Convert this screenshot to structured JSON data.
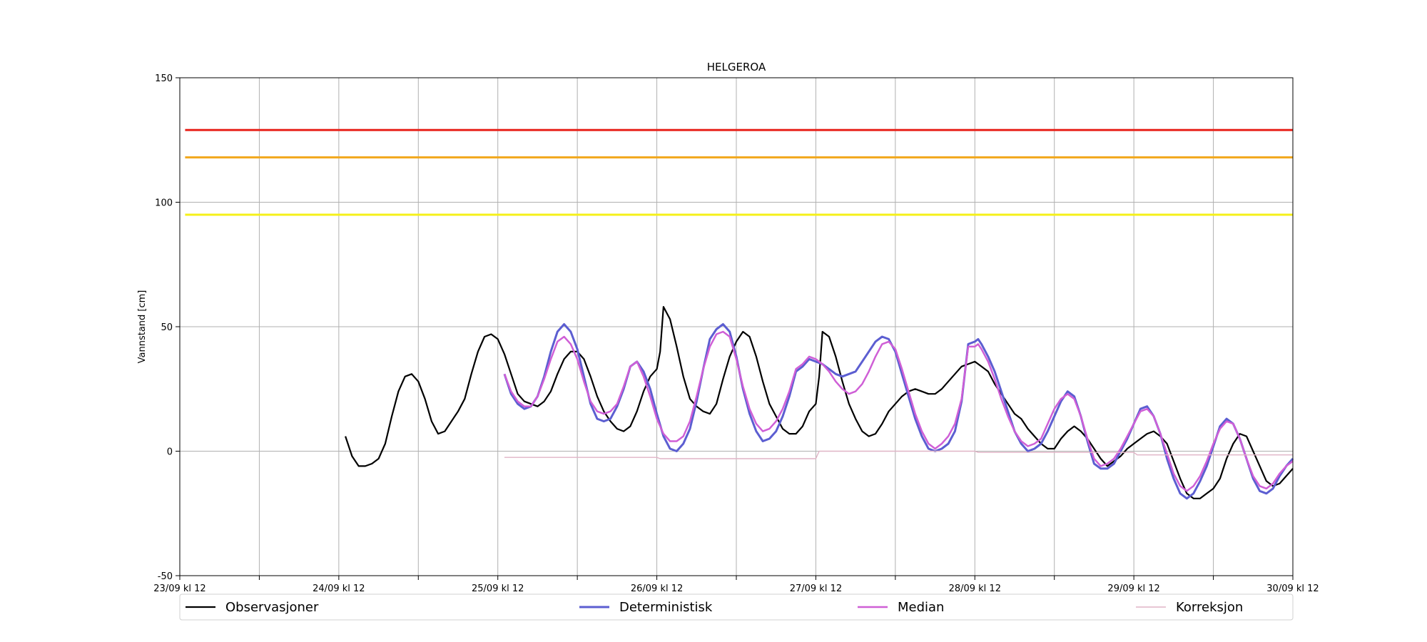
{
  "chart_data": {
    "type": "line",
    "title": "HELGEROA",
    "xlabel": "",
    "ylabel": "Vannstand [cm]",
    "ylim": [
      -50,
      150
    ],
    "yticks": [
      -50,
      0,
      50,
      100,
      150
    ],
    "xlim": [
      0,
      168
    ],
    "xticks": [
      0,
      24,
      48,
      72,
      96,
      120,
      144,
      168
    ],
    "xtick_labels": [
      "23/09 kl 12",
      "24/09 kl 12",
      "25/09 kl 12",
      "26/09 kl 12",
      "27/09 kl 12",
      "28/09 kl 12",
      "29/09 kl 12",
      "30/09 kl 12"
    ],
    "grid": true,
    "legend_position": "bottom",
    "thresholds": [
      {
        "value": 129,
        "color": "#e8241c"
      },
      {
        "value": 118,
        "color": "#f2a81d"
      },
      {
        "value": 95,
        "color": "#f5f019"
      }
    ],
    "series": [
      {
        "name": "Observasjoner",
        "color": "#000000",
        "x": [
          25,
          26,
          27,
          28,
          29,
          30,
          31,
          32,
          33,
          34,
          35,
          36,
          37,
          38,
          39,
          40,
          41,
          42,
          43,
          44,
          45,
          46,
          47,
          48,
          49,
          50,
          51,
          52,
          53,
          54,
          55,
          56,
          57,
          58,
          59,
          60,
          61,
          62,
          63,
          64,
          65,
          66,
          67,
          68,
          69,
          70,
          71,
          72,
          72.5,
          73,
          74,
          75,
          76,
          77,
          78,
          79,
          80,
          81,
          82,
          83,
          84,
          85,
          86,
          87,
          88,
          89,
          90,
          91,
          92,
          93,
          94,
          95,
          96,
          96.5,
          97,
          98,
          99,
          100,
          101,
          102,
          103,
          104,
          105,
          106,
          107,
          108,
          109,
          110,
          111,
          112,
          113,
          114,
          115,
          116,
          117,
          118,
          119,
          120,
          121,
          122,
          123,
          124,
          125,
          126,
          127,
          128,
          129,
          130,
          131,
          132,
          133,
          134,
          135,
          136,
          137,
          138,
          139,
          140,
          141,
          142,
          143,
          144,
          145,
          146,
          147,
          148,
          149,
          150,
          151,
          152,
          153,
          154,
          155,
          156,
          157,
          158,
          159,
          160,
          161,
          162,
          163,
          164,
          165,
          166,
          167,
          168
        ],
        "y": [
          6,
          -2,
          -6,
          -6,
          -5,
          -3,
          3,
          14,
          24,
          30,
          31,
          28,
          21,
          12,
          7,
          8,
          12,
          16,
          21,
          31,
          40,
          46,
          47,
          45,
          39,
          31,
          23,
          20,
          19,
          18,
          20,
          24,
          31,
          37,
          40,
          40,
          37,
          30,
          22,
          16,
          12,
          9,
          8,
          10,
          16,
          24,
          30,
          33,
          40,
          58,
          53,
          42,
          30,
          21,
          18,
          16,
          15,
          19,
          29,
          38,
          44,
          48,
          46,
          38,
          28,
          19,
          14,
          9,
          7,
          7,
          10,
          16,
          19,
          30,
          48,
          46,
          38,
          28,
          19,
          13,
          8,
          6,
          7,
          11,
          16,
          19,
          22,
          24,
          25,
          24,
          23,
          23,
          25,
          28,
          31,
          34,
          35,
          36,
          34,
          32,
          27,
          23,
          19,
          15,
          13,
          9,
          6,
          3,
          1,
          1,
          5,
          8,
          10,
          8,
          5,
          1,
          -3,
          -6,
          -4,
          -2,
          1,
          3,
          5,
          7,
          8,
          6,
          3,
          -4,
          -11,
          -17,
          -19,
          -19,
          -17,
          -15,
          -11,
          -3,
          3,
          7,
          6,
          0,
          -6,
          -12,
          -14,
          -13,
          -10,
          -7
        ]
      },
      {
        "name": "Deterministisk",
        "color": "#5c5ed1",
        "x": [
          49,
          50,
          51,
          52,
          53,
          54,
          55,
          56,
          57,
          58,
          59,
          60,
          61,
          62,
          63,
          64,
          65,
          66,
          67,
          68,
          69,
          70,
          71,
          72,
          73,
          74,
          75,
          76,
          77,
          78,
          79,
          80,
          81,
          82,
          83,
          84,
          85,
          86,
          87,
          88,
          89,
          90,
          91,
          92,
          93,
          94,
          95,
          96,
          97,
          98,
          99,
          100,
          101,
          102,
          103,
          104,
          105,
          106,
          107,
          108,
          109,
          110,
          111,
          112,
          113,
          114,
          115,
          116,
          117,
          118,
          119,
          120,
          120.5,
          121,
          122,
          123,
          124,
          125,
          126,
          127,
          128,
          129,
          130,
          131,
          132,
          133,
          134,
          135,
          136,
          137,
          138,
          139,
          140,
          141,
          142,
          143,
          144,
          145,
          146,
          147,
          148,
          149,
          150,
          151,
          152,
          153,
          154,
          155,
          156,
          157,
          158,
          159,
          160,
          161,
          162,
          163,
          164,
          165,
          166,
          167,
          168
        ],
        "y": [
          31,
          23,
          19,
          17,
          18,
          22,
          30,
          40,
          48,
          51,
          48,
          41,
          30,
          19,
          13,
          12,
          13,
          18,
          25,
          34,
          36,
          32,
          25,
          15,
          6,
          1,
          0,
          3,
          9,
          20,
          33,
          45,
          49,
          51,
          48,
          38,
          25,
          15,
          8,
          4,
          5,
          8,
          14,
          22,
          32,
          34,
          37,
          36,
          35,
          33,
          31,
          30,
          31,
          32,
          36,
          40,
          44,
          46,
          45,
          40,
          31,
          22,
          13,
          6,
          1,
          0,
          1,
          3,
          8,
          20,
          43,
          44,
          45,
          43,
          38,
          32,
          24,
          16,
          8,
          3,
          0,
          1,
          3,
          8,
          14,
          20,
          24,
          22,
          14,
          4,
          -5,
          -7,
          -7,
          -5,
          0,
          5,
          11,
          17,
          18,
          14,
          7,
          -3,
          -11,
          -17,
          -19,
          -17,
          -12,
          -6,
          2,
          10,
          13,
          11,
          5,
          -3,
          -11,
          -16,
          -17,
          -15,
          -10,
          -6,
          -3
        ]
      },
      {
        "name": "Median",
        "color": "#cf5fd6",
        "x": [
          49,
          50,
          51,
          52,
          53,
          54,
          55,
          56,
          57,
          58,
          59,
          60,
          61,
          62,
          63,
          64,
          65,
          66,
          67,
          68,
          69,
          70,
          71,
          72,
          73,
          74,
          75,
          76,
          77,
          78,
          79,
          80,
          81,
          82,
          83,
          84,
          85,
          86,
          87,
          88,
          89,
          90,
          91,
          92,
          93,
          94,
          95,
          96,
          97,
          98,
          99,
          100,
          101,
          102,
          103,
          104,
          105,
          106,
          107,
          108,
          109,
          110,
          111,
          112,
          113,
          114,
          115,
          116,
          117,
          118,
          119,
          120,
          120.5,
          121,
          122,
          123,
          124,
          125,
          126,
          127,
          128,
          129,
          130,
          131,
          132,
          133,
          134,
          135,
          136,
          137,
          138,
          139,
          140,
          141,
          142,
          143,
          144,
          145,
          146,
          147,
          148,
          149,
          150,
          151,
          152,
          153,
          154,
          155,
          156,
          157,
          158,
          159,
          160,
          161,
          162,
          163,
          164,
          165,
          166,
          167,
          168
        ],
        "y": [
          31,
          24,
          20,
          18,
          18,
          22,
          29,
          37,
          44,
          46,
          43,
          37,
          28,
          20,
          16,
          15,
          16,
          19,
          26,
          34,
          36,
          30,
          22,
          13,
          7,
          4,
          4,
          6,
          12,
          22,
          33,
          42,
          47,
          48,
          46,
          37,
          26,
          17,
          11,
          8,
          9,
          12,
          17,
          24,
          33,
          35,
          38,
          37,
          35,
          32,
          28,
          25,
          23,
          24,
          27,
          32,
          38,
          43,
          44,
          41,
          33,
          24,
          15,
          8,
          3,
          1,
          3,
          6,
          11,
          21,
          42,
          42,
          43,
          41,
          36,
          29,
          21,
          14,
          8,
          4,
          2,
          3,
          5,
          11,
          17,
          21,
          23,
          21,
          14,
          5,
          -3,
          -6,
          -5,
          -3,
          1,
          6,
          11,
          16,
          17,
          14,
          7,
          -1,
          -9,
          -14,
          -16,
          -14,
          -10,
          -4,
          3,
          9,
          12,
          11,
          5,
          -3,
          -10,
          -14,
          -15,
          -13,
          -9,
          -6,
          -4
        ]
      },
      {
        "name": "Korreksjon",
        "color": "#e0b4c6",
        "x": [
          49,
          72,
          72.5,
          96,
          96.5,
          120,
          120.5,
          144,
          144.5,
          168
        ],
        "y": [
          -2.5,
          -2.5,
          -3,
          -3,
          0,
          0,
          -0.5,
          -0.5,
          -1.5,
          -1.5
        ]
      }
    ]
  }
}
